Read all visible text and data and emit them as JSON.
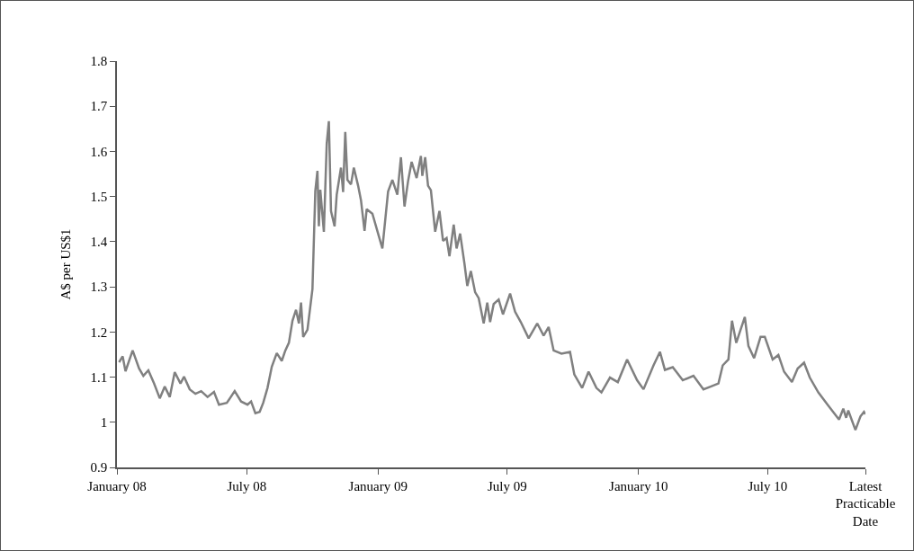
{
  "chart_data": {
    "type": "line",
    "ylabel": "A$ per US$1",
    "x": [
      "2008-01-04",
      "2008-01-09",
      "2008-01-13",
      "2008-01-23",
      "2008-02-01",
      "2008-02-07",
      "2008-02-14",
      "2008-02-22",
      "2008-03-01",
      "2008-03-08",
      "2008-03-15",
      "2008-03-22",
      "2008-03-30",
      "2008-04-04",
      "2008-04-12",
      "2008-04-20",
      "2008-04-28",
      "2008-05-07",
      "2008-05-16",
      "2008-05-23",
      "2008-06-03",
      "2008-06-14",
      "2008-06-23",
      "2008-07-02",
      "2008-07-07",
      "2008-07-13",
      "2008-07-19",
      "2008-07-24",
      "2008-07-30",
      "2008-08-05",
      "2008-08-12",
      "2008-08-19",
      "2008-08-24",
      "2008-08-29",
      "2008-09-03",
      "2008-09-08",
      "2008-09-12",
      "2008-09-15",
      "2008-09-18",
      "2008-09-24",
      "2008-10-01",
      "2008-10-05",
      "2008-10-08",
      "2008-10-10",
      "2008-10-12",
      "2008-10-17",
      "2008-10-21",
      "2008-10-24",
      "2008-10-27",
      "2008-11-01",
      "2008-11-04",
      "2008-11-10",
      "2008-11-13",
      "2008-11-16",
      "2008-11-19",
      "2008-11-24",
      "2008-11-28",
      "2008-12-04",
      "2008-12-08",
      "2008-12-13",
      "2008-12-16",
      "2008-12-24",
      "2009-01-01",
      "2009-01-07",
      "2009-01-15",
      "2009-01-21",
      "2009-01-28",
      "2009-02-02",
      "2009-02-07",
      "2009-02-12",
      "2009-02-17",
      "2009-02-24",
      "2009-03-02",
      "2009-03-04",
      "2009-03-08",
      "2009-03-12",
      "2009-03-16",
      "2009-03-22",
      "2009-03-28",
      "2009-04-02",
      "2009-04-07",
      "2009-04-11",
      "2009-04-17",
      "2009-04-21",
      "2009-04-26",
      "2009-05-02",
      "2009-05-06",
      "2009-05-11",
      "2009-05-17",
      "2009-05-22",
      "2009-05-29",
      "2009-06-03",
      "2009-06-07",
      "2009-06-12",
      "2009-06-19",
      "2009-06-25",
      "2009-07-05",
      "2009-07-12",
      "2009-07-20",
      "2009-07-31",
      "2009-08-12",
      "2009-08-21",
      "2009-08-28",
      "2009-09-04",
      "2009-09-15",
      "2009-09-27",
      "2009-10-03",
      "2009-10-14",
      "2009-10-23",
      "2009-11-03",
      "2009-11-10",
      "2009-11-22",
      "2009-12-03",
      "2009-12-16",
      "2009-12-30",
      "2010-01-08",
      "2010-01-22",
      "2010-01-31",
      "2010-02-07",
      "2010-02-18",
      "2010-03-04",
      "2010-03-19",
      "2010-04-02",
      "2010-04-12",
      "2010-04-23",
      "2010-04-29",
      "2010-05-07",
      "2010-05-12",
      "2010-05-18",
      "2010-05-24",
      "2010-05-30",
      "2010-06-04",
      "2010-06-12",
      "2010-06-21",
      "2010-06-27",
      "2010-07-08",
      "2010-07-16",
      "2010-07-24",
      "2010-08-04",
      "2010-08-12",
      "2010-08-21",
      "2010-08-29",
      "2010-09-10",
      "2010-09-23",
      "2010-10-09",
      "2010-10-15",
      "2010-10-19",
      "2010-10-22",
      "2010-11-01",
      "2010-11-08",
      "2010-11-13",
      "2010-11-15"
    ],
    "series": [
      {
        "color": "#808080",
        "values": [
          1.133,
          1.146,
          1.113,
          1.159,
          1.119,
          1.103,
          1.115,
          1.086,
          1.053,
          1.079,
          1.056,
          1.111,
          1.086,
          1.101,
          1.073,
          1.063,
          1.069,
          1.056,
          1.067,
          1.039,
          1.043,
          1.069,
          1.046,
          1.039,
          1.046,
          1.02,
          1.023,
          1.043,
          1.076,
          1.123,
          1.153,
          1.136,
          1.159,
          1.176,
          1.225,
          1.249,
          1.219,
          1.265,
          1.189,
          1.205,
          1.295,
          1.512,
          1.557,
          1.434,
          1.515,
          1.422,
          1.617,
          1.667,
          1.468,
          1.434,
          1.504,
          1.564,
          1.51,
          1.643,
          1.537,
          1.527,
          1.564,
          1.524,
          1.492,
          1.424,
          1.472,
          1.462,
          1.418,
          1.385,
          1.511,
          1.537,
          1.504,
          1.587,
          1.478,
          1.534,
          1.577,
          1.541,
          1.59,
          1.546,
          1.587,
          1.524,
          1.514,
          1.422,
          1.468,
          1.402,
          1.408,
          1.368,
          1.438,
          1.385,
          1.418,
          1.352,
          1.302,
          1.335,
          1.288,
          1.275,
          1.219,
          1.265,
          1.222,
          1.262,
          1.272,
          1.239,
          1.285,
          1.245,
          1.222,
          1.186,
          1.219,
          1.192,
          1.211,
          1.159,
          1.152,
          1.156,
          1.106,
          1.076,
          1.112,
          1.076,
          1.066,
          1.099,
          1.089,
          1.139,
          1.093,
          1.073,
          1.126,
          1.156,
          1.116,
          1.122,
          1.093,
          1.103,
          1.073,
          1.079,
          1.086,
          1.126,
          1.139,
          1.225,
          1.176,
          1.205,
          1.233,
          1.169,
          1.142,
          1.189,
          1.189,
          1.139,
          1.149,
          1.112,
          1.089,
          1.119,
          1.132,
          1.099,
          1.066,
          1.039,
          1.006,
          1.03,
          1.01,
          1.026,
          0.983,
          1.013,
          1.023,
          1.018
        ]
      }
    ],
    "xlim": [
      "2008-01-01",
      "2010-11-15"
    ],
    "xticks": [
      {
        "value": "2008-01-01",
        "label": "January 08"
      },
      {
        "value": "2008-07-01",
        "label": "July 08"
      },
      {
        "value": "2009-01-01",
        "label": "January 09"
      },
      {
        "value": "2009-07-01",
        "label": "July 09"
      },
      {
        "value": "2010-01-01",
        "label": "January 10"
      },
      {
        "value": "2010-07-01",
        "label": "July 10"
      },
      {
        "value": "2010-11-15",
        "label": "Latest Practicable Date"
      }
    ],
    "ylim": [
      0.9,
      1.8
    ],
    "yticks": [
      0.9,
      1,
      1.1,
      1.2,
      1.3,
      1.4,
      1.5,
      1.6,
      1.7,
      1.8
    ],
    "grid": false,
    "marker": "none",
    "line_style": "solid"
  }
}
